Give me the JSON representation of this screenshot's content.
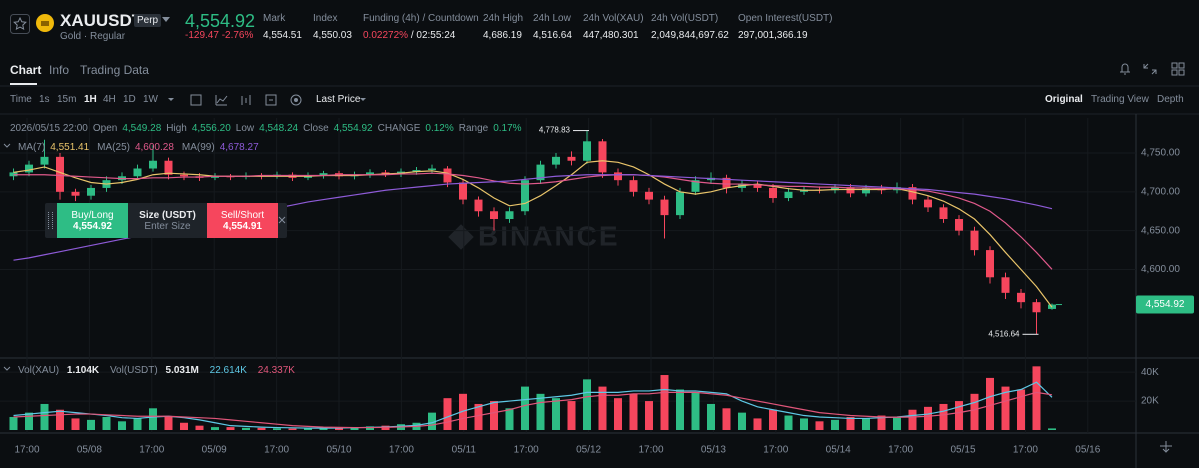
{
  "header": {
    "symbol": "XAUUSDT",
    "badge": "Perp",
    "subtitle": "Gold · Regular",
    "price": "4,554.92",
    "change": "-129.47",
    "change_pct": "-2.76%",
    "stats": [
      {
        "label": "Mark",
        "value": "4,554.51"
      },
      {
        "label": "Index",
        "value": "4,550.03"
      },
      {
        "label": "Funding (4h) / Countdown",
        "value": "0.02272%",
        "extra": "/ 02:55:24"
      },
      {
        "label": "24h High",
        "value": "4,686.19"
      },
      {
        "label": "24h Low",
        "value": "4,516.64"
      },
      {
        "label": "24h Vol(XAU)",
        "value": "447,480.301"
      },
      {
        "label": "24h Vol(USDT)",
        "value": "2,049,844,697.62"
      },
      {
        "label": "Open Interest(USDT)",
        "value": "297,001,366.19"
      }
    ]
  },
  "tabs": [
    "Chart",
    "Info",
    "Trading Data"
  ],
  "intervals": [
    "Time",
    "1s",
    "15m",
    "1H",
    "4H",
    "1D",
    "1W"
  ],
  "price_type": "Last Price",
  "views": [
    "Original",
    "Trading View",
    "Depth"
  ],
  "order_panel": {
    "buy_label": "Buy/Long",
    "buy_price": "4,554.92",
    "size_label": "Size (USDT)",
    "size_placeholder": "Enter Size",
    "sell_label": "Sell/Short",
    "sell_price": "4,554.91"
  },
  "watermark": "BINANCE",
  "chart_data": {
    "type": "candlestick",
    "info": [
      {
        "text": "2026/05/15 22:00"
      },
      {
        "text": "Open"
      },
      {
        "text": "4,549.28",
        "hl": true
      },
      {
        "text": "High"
      },
      {
        "text": "4,556.20",
        "hl": true
      },
      {
        "text": "Low"
      },
      {
        "text": "4,548.24",
        "hl": true
      },
      {
        "text": "Close"
      },
      {
        "text": "4,554.92",
        "hl": true
      },
      {
        "text": "CHANGE"
      },
      {
        "text": "0.12%",
        "hl": true
      },
      {
        "text": "Range"
      },
      {
        "text": "0.17%",
        "hl": true
      }
    ],
    "up_color": "#2ebd85",
    "down_color": "#f6465d",
    "open": [
      4720,
      4725,
      4735,
      4745,
      4700,
      4695,
      4705,
      4715,
      4720,
      4730,
      4740,
      4722,
      4720,
      4718,
      4720,
      4719,
      4721,
      4720,
      4722,
      4718,
      4721,
      4724,
      4720,
      4722,
      4725,
      4723,
      4726,
      4728,
      4730,
      4712,
      4690,
      4675,
      4665,
      4675,
      4715,
      4735,
      4745,
      4740,
      4765,
      4725,
      4715,
      4700,
      4690,
      4670,
      4700,
      4715,
      4718,
      4705,
      4710,
      4705,
      4692,
      4700,
      4703,
      4702,
      4706,
      4698,
      4705,
      4702,
      4706,
      4690,
      4680,
      4665,
      4650,
      4625,
      4590,
      4570,
      4558,
      4549.28
    ],
    "high": [
      4730,
      4740,
      4767,
      4750,
      4704,
      4709,
      4720,
      4725,
      4735,
      4760,
      4744,
      4726,
      4724,
      4724,
      4723,
      4725,
      4724,
      4726,
      4725,
      4725,
      4727,
      4727,
      4726,
      4729,
      4728,
      4730,
      4732,
      4735,
      4733,
      4716,
      4694,
      4680,
      4680,
      4720,
      4740,
      4750,
      4752,
      4778.83,
      4768,
      4730,
      4720,
      4705,
      4695,
      4705,
      4720,
      4725,
      4722,
      4715,
      4714,
      4710,
      4705,
      4707,
      4707,
      4710,
      4710,
      4709,
      4709,
      4712,
      4710,
      4695,
      4684,
      4670,
      4655,
      4630,
      4596,
      4575,
      4562,
      4556.2
    ],
    "low": [
      4715,
      4720,
      4730,
      4690,
      4688,
      4690,
      4700,
      4710,
      4716,
      4726,
      4716,
      4715,
      4714,
      4715,
      4715,
      4716,
      4716,
      4717,
      4714,
      4715,
      4717,
      4716,
      4716,
      4718,
      4719,
      4719,
      4722,
      4724,
      4706,
      4684,
      4668,
      4650,
      4660,
      4670,
      4710,
      4730,
      4734,
      4736,
      4718,
      4708,
      4694,
      4684,
      4640,
      4665,
      4696,
      4710,
      4698,
      4700,
      4700,
      4686,
      4688,
      4696,
      4698,
      4698,
      4693,
      4694,
      4697,
      4698,
      4684,
      4674,
      4660,
      4644,
      4618,
      4582,
      4562,
      4550,
      4516.64,
      4548.24
    ],
    "close": [
      4725,
      4735,
      4745,
      4700,
      4695,
      4705,
      4715,
      4720,
      4730,
      4740,
      4722,
      4720,
      4718,
      4720,
      4719,
      4721,
      4720,
      4722,
      4718,
      4721,
      4724,
      4720,
      4722,
      4725,
      4723,
      4726,
      4728,
      4730,
      4712,
      4690,
      4675,
      4665,
      4675,
      4715,
      4735,
      4745,
      4740,
      4765,
      4725,
      4715,
      4700,
      4690,
      4670,
      4700,
      4715,
      4718,
      4705,
      4710,
      4705,
      4692,
      4700,
      4703,
      4702,
      4706,
      4698,
      4705,
      4702,
      4706,
      4690,
      4680,
      4665,
      4650,
      4625,
      4590,
      4570,
      4558,
      4545,
      4554.92
    ],
    "series": [
      {
        "name": "MA(7)",
        "legend_value": "4,551.41",
        "color": "#e9c46a",
        "values": [
          4725,
          4728,
          4732,
          4725,
          4718,
          4712,
          4710,
          4712,
          4716,
          4722,
          4724,
          4723,
          4722,
          4720,
          4720,
          4720,
          4720,
          4720,
          4720,
          4720,
          4721,
          4721,
          4721,
          4722,
          4723,
          4724,
          4726,
          4727,
          4724,
          4716,
          4705,
          4692,
          4682,
          4685,
          4695,
          4708,
          4722,
          4738,
          4740,
          4738,
          4732,
          4722,
          4710,
          4700,
          4697,
          4700,
          4705,
          4708,
          4710,
          4707,
          4704,
          4702,
          4702,
          4703,
          4703,
          4703,
          4703,
          4704,
          4700,
          4695,
          4688,
          4678,
          4665,
          4645,
          4622,
          4600,
          4578,
          4551.41
        ]
      },
      {
        "name": "MA(25)",
        "legend_value": "4,600.28",
        "color": "#e0598b",
        "values": [
          4722,
          4722,
          4722,
          4721,
          4720,
          4719,
          4718,
          4717,
          4717,
          4718,
          4718,
          4719,
          4719,
          4720,
          4720,
          4720,
          4721,
          4721,
          4721,
          4721,
          4721,
          4722,
          4722,
          4722,
          4722,
          4723,
          4723,
          4724,
          4723,
          4721,
          4718,
          4714,
          4711,
          4710,
          4711,
          4713,
          4716,
          4719,
          4721,
          4722,
          4722,
          4721,
          4719,
          4716,
          4713,
          4711,
          4710,
          4710,
          4709,
          4708,
          4707,
          4707,
          4706,
          4706,
          4705,
          4705,
          4704,
          4704,
          4703,
          4701,
          4697,
          4692,
          4685,
          4675,
          4660,
          4642,
          4622,
          4600.28
        ]
      },
      {
        "name": "MA(99)",
        "legend_value": "4,678.27",
        "color": "#8e5bd8",
        "values": [
          4612,
          4615,
          4619,
          4623,
          4627,
          4631,
          4635,
          4639,
          4643,
          4647,
          4651,
          4655,
          4659,
          4663,
          4667,
          4671,
          4675,
          4679,
          4683,
          4687,
          4690,
          4693,
          4696,
          4699,
          4702,
          4704,
          4706,
          4708,
          4710,
          4711,
          4712,
          4713,
          4714,
          4716,
          4718,
          4720,
          4721,
          4722,
          4722,
          4722,
          4722,
          4721,
          4720,
          4719,
          4718,
          4717,
          4716,
          4715,
          4714,
          4713,
          4712,
          4711,
          4710,
          4709,
          4708,
          4707,
          4706,
          4705,
          4704,
          4703,
          4701,
          4699,
          4697,
          4694,
          4691,
          4687,
          4683,
          4678.27
        ]
      }
    ],
    "ylim": [
      4490,
      4795
    ],
    "yticks": [
      {
        "value": 4600,
        "label": "4,600.00"
      },
      {
        "value": 4650,
        "label": "4,650.00"
      },
      {
        "value": 4700,
        "label": "4,700.00"
      },
      {
        "value": 4750,
        "label": "4,750.00"
      }
    ],
    "max_label": "4,778.83",
    "min_label": "4,516.64",
    "last_price_label": "4,554.92",
    "xticks": [
      "17:00",
      "05/08",
      "17:00",
      "05/09",
      "17:00",
      "05/10",
      "17:00",
      "05/11",
      "17:00",
      "05/12",
      "17:00",
      "05/13",
      "17:00",
      "05/14",
      "17:00",
      "05/15",
      "17:00",
      "05/16"
    ],
    "grid": true,
    "volume": {
      "name": "Vol(XAU)",
      "legend_value": "1.104K",
      "usdt_name": "Vol(USDT)",
      "usdt_value": "5.031M",
      "values": [
        9000,
        12000,
        18000,
        14000,
        8000,
        7000,
        9000,
        6000,
        8000,
        15000,
        9000,
        5000,
        3000,
        2000,
        2000,
        1500,
        1500,
        1200,
        1000,
        1200,
        1500,
        1800,
        2000,
        2500,
        3000,
        4000,
        5000,
        12000,
        22000,
        25000,
        18000,
        20000,
        15000,
        30000,
        25000,
        22000,
        20000,
        35000,
        30000,
        22000,
        25000,
        20000,
        38000,
        28000,
        26000,
        18000,
        15000,
        12000,
        8000,
        14000,
        10000,
        8000,
        6000,
        7000,
        9000,
        8000,
        10000,
        9000,
        14000,
        16000,
        18000,
        20000,
        25000,
        36000,
        30000,
        28000,
        44000,
        1104
      ],
      "ylim": [
        0,
        47000
      ],
      "yticks": [
        {
          "value": 20000,
          "label": "20K"
        },
        {
          "value": 40000,
          "label": "40K"
        }
      ],
      "ma_series": [
        {
          "legend_value": "22.614K",
          "color": "#5ec8e5",
          "values": [
            10000,
            11000,
            12000,
            13000,
            12000,
            11000,
            10000,
            8500,
            8000,
            9000,
            9500,
            8500,
            7000,
            5000,
            3000,
            2500,
            2000,
            1700,
            1500,
            1300,
            1300,
            1400,
            1600,
            1800,
            2100,
            2600,
            3200,
            5000,
            9000,
            13000,
            16000,
            19000,
            20000,
            21000,
            22000,
            23000,
            24000,
            26000,
            26000,
            26000,
            27000,
            27000,
            28000,
            27000,
            27000,
            26000,
            25000,
            20000,
            16000,
            14000,
            12000,
            10000,
            9000,
            8500,
            8000,
            8000,
            8500,
            9000,
            10000,
            11000,
            13000,
            16000,
            19000,
            23000,
            26000,
            28000,
            33000,
            22614
          ]
        },
        {
          "legend_value": "24.337K",
          "color": "#e0567a",
          "values": [
            9000,
            9500,
            10000,
            10500,
            11000,
            11000,
            10500,
            10000,
            9500,
            9500,
            9500,
            9000,
            8500,
            8000,
            7000,
            6000,
            5000,
            4000,
            3000,
            2500,
            2000,
            1800,
            1700,
            1700,
            1800,
            2100,
            2500,
            3400,
            5500,
            8000,
            10000,
            12000,
            14000,
            17000,
            19000,
            20000,
            21000,
            23000,
            24000,
            24000,
            25000,
            25000,
            26000,
            26000,
            26000,
            25000,
            24000,
            22000,
            20000,
            18000,
            16000,
            14000,
            12000,
            11000,
            10000,
            9500,
            9000,
            8800,
            9000,
            9500,
            10500,
            12000,
            14000,
            17000,
            20000,
            23000,
            26000,
            24337
          ]
        }
      ]
    }
  }
}
